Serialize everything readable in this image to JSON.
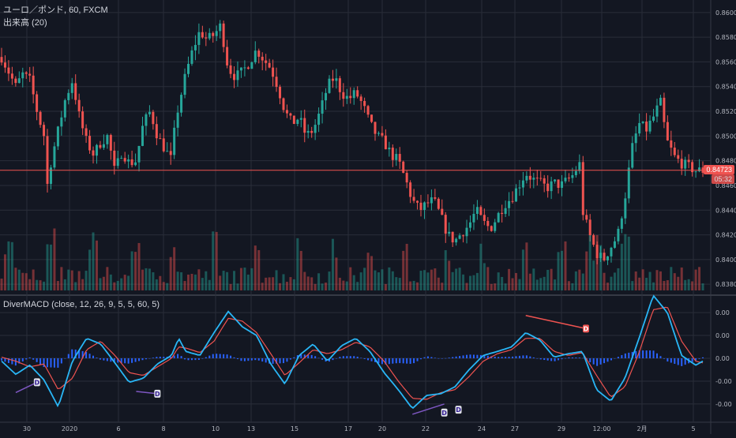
{
  "legend": {
    "symbol": "ユーロ／ポンド, 60, FXCM",
    "volume": "出来高 (20)",
    "indicator": "DiverMACD (close, 12, 26, 9, 5, 5, 60, 5)"
  },
  "price_tags": {
    "last": "0.84723",
    "countdown": "05:32"
  },
  "colors": {
    "background": "#131722",
    "up": "#26a69a",
    "down": "#ef5350",
    "grid": "#2a2e39",
    "text": "#b2b5be",
    "macd": "#29b6f6",
    "signal": "#ef5350",
    "hist": "#2962ff",
    "div_bull": "#7e57c2",
    "div_bear": "#ef5350"
  },
  "chart_data": [
    {
      "type": "candlestick",
      "title": "ユーロ／ポンド, 60, FXCM",
      "yaxis_ticks": [
        "0.86000",
        "0.85800",
        "0.85600",
        "0.85400",
        "0.85200",
        "0.85000",
        "0.84800",
        "0.84600",
        "0.84400",
        "0.84200",
        "0.84000",
        "0.83800"
      ],
      "ylim": [
        0.8375,
        0.8605
      ],
      "last_price": 0.84723,
      "xaxis_ticks": [
        "30",
        "2020",
        "6",
        "8",
        "10",
        "13",
        "15",
        "17",
        "20",
        "22",
        "24",
        "27",
        "29",
        "12:00",
        "2月",
        "5"
      ],
      "close_path": [
        [
          0,
          0.8564
        ],
        [
          2,
          0.854
        ],
        [
          3,
          0.855
        ],
        [
          4,
          0.8545
        ],
        [
          5,
          0.852
        ],
        [
          6,
          0.85
        ],
        [
          6.5,
          0.8458
        ],
        [
          7,
          0.848
        ],
        [
          8,
          0.8505
        ],
        [
          9,
          0.853
        ],
        [
          10,
          0.8545
        ],
        [
          11,
          0.8515
        ],
        [
          12,
          0.8495
        ],
        [
          13,
          0.8485
        ],
        [
          14,
          0.8495
        ],
        [
          15,
          0.85
        ],
        [
          16,
          0.847
        ],
        [
          16.5,
          0.848
        ],
        [
          17,
          0.8488
        ],
        [
          18,
          0.8478
        ],
        [
          19,
          0.848
        ],
        [
          20,
          0.851
        ],
        [
          21,
          0.852
        ],
        [
          22,
          0.85
        ],
        [
          23,
          0.849
        ],
        [
          24,
          0.848
        ],
        [
          24.5,
          0.851
        ],
        [
          25,
          0.8525
        ],
        [
          26,
          0.855
        ],
        [
          27,
          0.857
        ],
        [
          28,
          0.8585
        ],
        [
          29,
          0.8578
        ],
        [
          30,
          0.8582
        ],
        [
          31,
          0.859
        ],
        [
          31.5,
          0.857
        ],
        [
          32,
          0.8555
        ],
        [
          33,
          0.8548
        ],
        [
          34,
          0.8552
        ],
        [
          35,
          0.856
        ],
        [
          36,
          0.857
        ],
        [
          37,
          0.8562
        ],
        [
          38,
          0.8555
        ],
        [
          39,
          0.854
        ],
        [
          40,
          0.852
        ],
        [
          41,
          0.851
        ],
        [
          42,
          0.8515
        ],
        [
          43,
          0.85
        ],
        [
          44,
          0.8505
        ],
        [
          45,
          0.852
        ],
        [
          46,
          0.854
        ],
        [
          47,
          0.8548
        ],
        [
          48,
          0.8535
        ],
        [
          49,
          0.853
        ],
        [
          50,
          0.8535
        ],
        [
          51,
          0.8525
        ],
        [
          52,
          0.851
        ],
        [
          53,
          0.85
        ],
        [
          54,
          0.8495
        ],
        [
          55,
          0.8485
        ],
        [
          56,
          0.848
        ],
        [
          57,
          0.8465
        ],
        [
          58,
          0.8448
        ],
        [
          59,
          0.844
        ],
        [
          60,
          0.8445
        ],
        [
          61,
          0.8448
        ],
        [
          62,
          0.8435
        ],
        [
          63,
          0.842
        ],
        [
          64,
          0.8415
        ],
        [
          65,
          0.8422
        ],
        [
          66,
          0.8428
        ],
        [
          67,
          0.844
        ],
        [
          68,
          0.843
        ],
        [
          69,
          0.8425
        ],
        [
          70,
          0.8435
        ],
        [
          71,
          0.8445
        ],
        [
          72,
          0.845
        ],
        [
          73,
          0.846
        ],
        [
          74,
          0.847
        ],
        [
          75,
          0.8465
        ],
        [
          76,
          0.8462
        ],
        [
          77,
          0.8458
        ],
        [
          78,
          0.8462
        ],
        [
          79,
          0.846
        ],
        [
          80,
          0.8465
        ],
        [
          81,
          0.847
        ],
        [
          81.5,
          0.8485
        ],
        [
          82,
          0.844
        ],
        [
          83,
          0.842
        ],
        [
          84,
          0.8405
        ],
        [
          85,
          0.84
        ],
        [
          86,
          0.841
        ],
        [
          87,
          0.842
        ],
        [
          88,
          0.845
        ],
        [
          89,
          0.849
        ],
        [
          90,
          0.851
        ],
        [
          91,
          0.8505
        ],
        [
          92,
          0.8515
        ],
        [
          93,
          0.8528
        ],
        [
          93.5,
          0.851
        ],
        [
          94,
          0.8495
        ],
        [
          95,
          0.8483
        ],
        [
          96,
          0.8478
        ],
        [
          97,
          0.8475
        ],
        [
          98,
          0.8472
        ],
        [
          99,
          0.8472
        ]
      ],
      "volume_spikes": [
        1,
        7,
        13,
        19,
        24,
        30,
        36,
        42,
        47,
        52,
        57,
        63,
        68,
        74,
        79,
        83,
        84,
        88
      ]
    },
    {
      "type": "line",
      "title": "DiverMACD (close, 12, 26, 9, 5, 5, 60, 5)",
      "yaxis_ticks": [
        "0.00",
        "0.00",
        "0.00",
        "-0.00",
        "-0.00"
      ],
      "ylim": [
        -1.05,
        1.05
      ],
      "series": [
        {
          "values": [
            [
              0,
              -0.05
            ],
            [
              2,
              -0.28
            ],
            [
              4,
              -0.12
            ],
            [
              6,
              -0.38
            ],
            [
              8,
              -0.85
            ],
            [
              10,
              -0.05
            ],
            [
              12,
              0.35
            ],
            [
              14,
              0.25
            ],
            [
              16,
              -0.08
            ],
            [
              18,
              -0.42
            ],
            [
              20,
              -0.35
            ],
            [
              22,
              -0.1
            ],
            [
              24,
              0.05
            ],
            [
              25,
              0.35
            ],
            [
              26,
              0.12
            ],
            [
              28,
              0.05
            ],
            [
              30,
              0.45
            ],
            [
              32,
              0.82
            ],
            [
              34,
              0.55
            ],
            [
              36,
              0.4
            ],
            [
              38,
              -0.1
            ],
            [
              40,
              -0.45
            ],
            [
              42,
              0.05
            ],
            [
              44,
              0.25
            ],
            [
              46,
              -0.05
            ],
            [
              48,
              0.22
            ],
            [
              50,
              0.35
            ],
            [
              52,
              0.12
            ],
            [
              54,
              -0.25
            ],
            [
              56,
              -0.55
            ],
            [
              58,
              -0.88
            ],
            [
              60,
              -0.65
            ],
            [
              62,
              -0.62
            ],
            [
              64,
              -0.5
            ],
            [
              66,
              -0.2
            ],
            [
              68,
              0.05
            ],
            [
              70,
              0.12
            ],
            [
              72,
              0.2
            ],
            [
              74,
              0.45
            ],
            [
              76,
              0.32
            ],
            [
              78,
              0.02
            ],
            [
              80,
              0.08
            ],
            [
              82,
              0.12
            ],
            [
              84,
              -0.55
            ],
            [
              86,
              -0.75
            ],
            [
              88,
              -0.35
            ],
            [
              90,
              0.35
            ],
            [
              92,
              1.1
            ],
            [
              94,
              0.8
            ],
            [
              96,
              0.05
            ],
            [
              98,
              -0.12
            ],
            [
              99,
              -0.05
            ]
          ]
        },
        {
          "values": [
            [
              0,
              0.02
            ],
            [
              2,
              -0.05
            ],
            [
              4,
              -0.15
            ],
            [
              6,
              -0.1
            ],
            [
              8,
              -0.55
            ],
            [
              10,
              -0.35
            ],
            [
              12,
              0.15
            ],
            [
              14,
              0.3
            ],
            [
              16,
              0.05
            ],
            [
              18,
              -0.25
            ],
            [
              20,
              -0.3
            ],
            [
              22,
              -0.15
            ],
            [
              24,
              0.0
            ],
            [
              25,
              0.2
            ],
            [
              26,
              0.18
            ],
            [
              28,
              0.1
            ],
            [
              30,
              0.3
            ],
            [
              32,
              0.7
            ],
            [
              34,
              0.65
            ],
            [
              36,
              0.45
            ],
            [
              38,
              0.08
            ],
            [
              40,
              -0.3
            ],
            [
              42,
              -0.08
            ],
            [
              44,
              0.15
            ],
            [
              46,
              0.08
            ],
            [
              48,
              0.15
            ],
            [
              50,
              0.28
            ],
            [
              52,
              0.2
            ],
            [
              54,
              -0.05
            ],
            [
              56,
              -0.4
            ],
            [
              58,
              -0.7
            ],
            [
              60,
              -0.72
            ],
            [
              62,
              -0.6
            ],
            [
              64,
              -0.55
            ],
            [
              66,
              -0.32
            ],
            [
              68,
              -0.05
            ],
            [
              70,
              0.08
            ],
            [
              72,
              0.15
            ],
            [
              74,
              0.35
            ],
            [
              76,
              0.35
            ],
            [
              78,
              0.12
            ],
            [
              80,
              0.05
            ],
            [
              82,
              0.1
            ],
            [
              84,
              -0.3
            ],
            [
              86,
              -0.68
            ],
            [
              88,
              -0.5
            ],
            [
              90,
              0.1
            ],
            [
              92,
              0.85
            ],
            [
              94,
              0.9
            ],
            [
              96,
              0.3
            ],
            [
              98,
              -0.05
            ],
            [
              99,
              -0.08
            ]
          ]
        }
      ],
      "divergence_labels": [
        {
          "label": "D",
          "x": 5,
          "y": -0.42,
          "kind": "bull"
        },
        {
          "label": "D",
          "x": 22,
          "y": -0.62,
          "kind": "bull"
        },
        {
          "label": "D",
          "x": 62.5,
          "y": -0.95,
          "kind": "bull"
        },
        {
          "label": "D",
          "x": 64.5,
          "y": -0.9,
          "kind": "bull"
        },
        {
          "label": "D",
          "x": 82.5,
          "y": 0.52,
          "kind": "bear"
        }
      ],
      "divergence_lines": [
        {
          "from": [
            2,
            -0.6
          ],
          "to": [
            5,
            -0.42
          ],
          "kind": "bull"
        },
        {
          "from": [
            19,
            -0.58
          ],
          "to": [
            22,
            -0.62
          ],
          "kind": "bull"
        },
        {
          "from": [
            58,
            -0.98
          ],
          "to": [
            62.5,
            -0.8
          ],
          "kind": "bull"
        },
        {
          "from": [
            74,
            0.75
          ],
          "to": [
            82.5,
            0.52
          ],
          "kind": "bear"
        }
      ]
    }
  ]
}
